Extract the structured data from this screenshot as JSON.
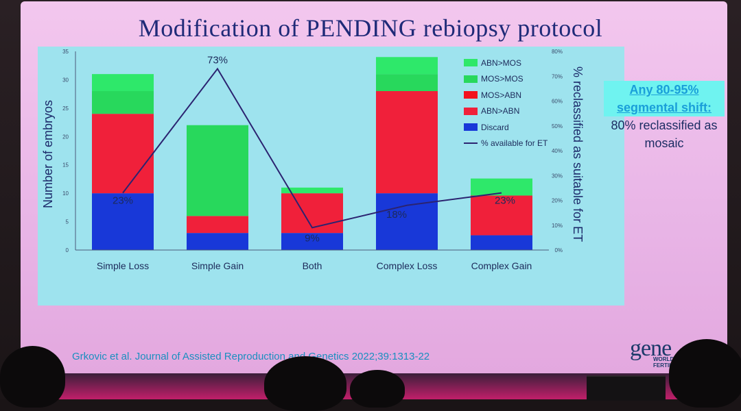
{
  "slide": {
    "title": "Modification of PENDING rebiopsy protocol",
    "side_note_highlight_1": "Any 80-95%",
    "side_note_highlight_2": "segmental shift:",
    "side_note_text": "80% reclassified as mosaic",
    "citation": "Grkovic et al. Journal of Assisted Reproduction and Genetics 2022;39:1313-22",
    "logo_text": "gene",
    "logo_subtext_1": "WORLD",
    "logo_subtext_2": "FERTILI"
  },
  "colors": {
    "discard": "#1838d8",
    "abn_abn": "#f0203a",
    "mos_abn": "#f2121e",
    "mos_mos": "#28d85c",
    "abn_mos": "#2ee86a",
    "line": "#2b2370",
    "panel": "#9ee3ee"
  },
  "chart_data": {
    "type": "bar",
    "stacked": true,
    "categories": [
      "Simple Loss",
      "Simple Gain",
      "Both",
      "Complex Loss",
      "Complex Gain"
    ],
    "series": [
      {
        "name": "Discard",
        "values": [
          10,
          3,
          3,
          10,
          2.6
        ]
      },
      {
        "name": "ABN>ABN",
        "values": [
          14,
          3,
          7,
          18,
          7
        ]
      },
      {
        "name": "MOS>ABN",
        "values": [
          0,
          0,
          0,
          0,
          0
        ]
      },
      {
        "name": "MOS>MOS",
        "values": [
          4,
          16,
          0,
          3,
          0
        ]
      },
      {
        "name": "ABN>MOS",
        "values": [
          3,
          0,
          1,
          3,
          3
        ]
      }
    ],
    "line_series": {
      "name": "% available for ET",
      "values": [
        23,
        73,
        9,
        18,
        23
      ],
      "labels": [
        "23%",
        "73%",
        "9%",
        "18%",
        "23%"
      ]
    },
    "ylabel": "Number of embryos",
    "y2label": "% reclassified as suitable for ET",
    "ylim": [
      0,
      35
    ],
    "y2lim": [
      0,
      80
    ],
    "yticks": [
      "0",
      "5",
      "10",
      "15",
      "20",
      "25",
      "30",
      "35"
    ],
    "y2ticks": [
      "0%",
      "10%",
      "20%",
      "30%",
      "40%",
      "50%",
      "60%",
      "70%",
      "80%"
    ],
    "legend_position": "top-right",
    "legend_order": [
      "ABN>MOS",
      "MOS>MOS",
      "MOS>ABN",
      "ABN>ABN",
      "Discard",
      "% available for ET"
    ]
  }
}
